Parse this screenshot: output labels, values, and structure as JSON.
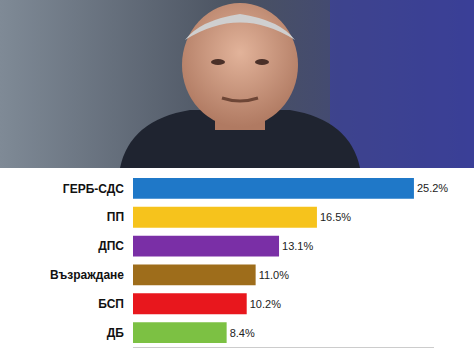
{
  "chart_data": {
    "type": "bar",
    "orientation": "horizontal",
    "categories": [
      "ГЕРБ-СДС",
      "ПП",
      "ДПС",
      "Възраждане",
      "БСП",
      "ДБ"
    ],
    "values": [
      25.2,
      16.5,
      13.1,
      11.0,
      10.2,
      8.4
    ],
    "value_labels": [
      "25.2%",
      "16.5%",
      "13.1%",
      "11.0%",
      "10.2%",
      "8.4%"
    ],
    "colors": [
      "#1f78c8",
      "#f6c31c",
      "#7a2fa6",
      "#9e6d1b",
      "#e8171d",
      "#7cc143"
    ],
    "xlim": [
      0,
      27
    ],
    "data_labels": true,
    "tick_labels": "y",
    "grid": false
  }
}
